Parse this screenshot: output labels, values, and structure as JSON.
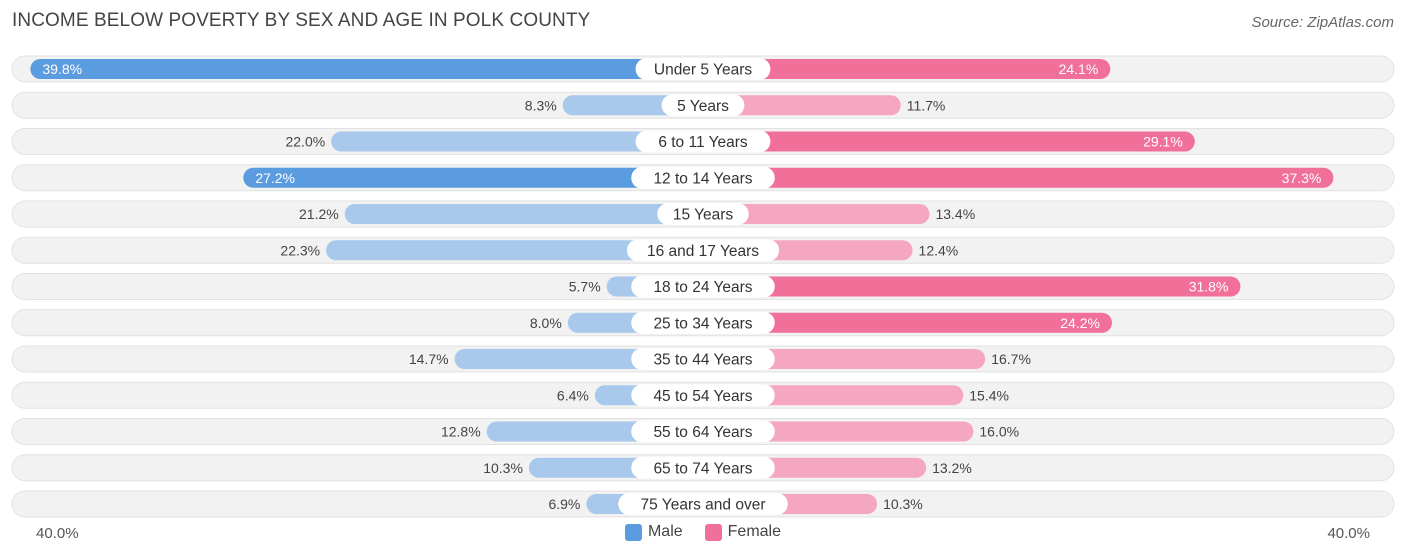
{
  "title": "INCOME BELOW POVERTY BY SEX AND AGE IN POLK COUNTY",
  "source": "Source: ZipAtlas.com",
  "axis": {
    "left_label": "40.0%",
    "right_label": "40.0%"
  },
  "legend": {
    "male_label": "Male",
    "female_label": "Female"
  },
  "colors": {
    "male_strong": "#5b9be0",
    "male_light": "#a8c8ec",
    "female_strong": "#f07099",
    "female_light": "#f5a6c0",
    "row_bg": "#f2f2f2"
  },
  "chart_data": {
    "type": "bar",
    "orientation": "horizontal-diverging",
    "xlim": [
      -40,
      40
    ],
    "categories": [
      "Under 5 Years",
      "5 Years",
      "6 to 11 Years",
      "12 to 14 Years",
      "15 Years",
      "16 and 17 Years",
      "18 to 24 Years",
      "25 to 34 Years",
      "35 to 44 Years",
      "45 to 54 Years",
      "55 to 64 Years",
      "65 to 74 Years",
      "75 Years and over"
    ],
    "series": [
      {
        "name": "Male",
        "values": [
          39.8,
          8.3,
          22.0,
          27.2,
          21.2,
          22.3,
          5.7,
          8.0,
          14.7,
          6.4,
          12.8,
          10.3,
          6.9
        ],
        "labels": [
          "39.8%",
          "8.3%",
          "22.0%",
          "27.2%",
          "21.2%",
          "22.3%",
          "5.7%",
          "8.0%",
          "14.7%",
          "6.4%",
          "12.8%",
          "10.3%",
          "6.9%"
        ]
      },
      {
        "name": "Female",
        "values": [
          24.1,
          11.7,
          29.1,
          37.3,
          13.4,
          12.4,
          31.8,
          24.2,
          16.7,
          15.4,
          16.0,
          13.2,
          10.3
        ],
        "labels": [
          "24.1%",
          "11.7%",
          "29.1%",
          "37.3%",
          "13.4%",
          "12.4%",
          "31.8%",
          "24.2%",
          "16.7%",
          "15.4%",
          "16.0%",
          "13.2%",
          "10.3%"
        ]
      }
    ]
  }
}
